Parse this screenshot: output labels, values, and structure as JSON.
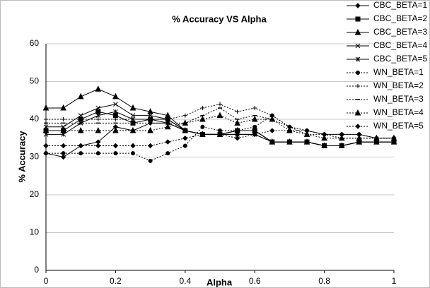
{
  "chart_data": {
    "type": "line",
    "title": "% Accuracy VS Alpha",
    "x_label": "Alpha",
    "y_label": "% Accuracy",
    "x": [
      0,
      0.05,
      0.1,
      0.15,
      0.2,
      0.25,
      0.3,
      0.35,
      0.4,
      0.45,
      0.5,
      0.55,
      0.6,
      0.65,
      0.7,
      0.75,
      0.8,
      0.85,
      0.9,
      0.95,
      1
    ],
    "xlim": [
      0,
      1
    ],
    "xticks": [
      0,
      0.2,
      0.4,
      0.6,
      0.8,
      1
    ],
    "ylim": [
      0,
      60
    ],
    "yticks": [
      0,
      10,
      20,
      30,
      40,
      50,
      60
    ],
    "grid": true,
    "legend": "top-right",
    "series": [
      {
        "name": "CBC_BETA=1",
        "color": "#000000",
        "marker": "diamond",
        "dash": "solid",
        "values": [
          31,
          30,
          33,
          34,
          38,
          37,
          39,
          39,
          37,
          36,
          36,
          36,
          36,
          34,
          34,
          34,
          33,
          33,
          34,
          34,
          34
        ]
      },
      {
        "name": "CBC_BETA=2",
        "color": "#000000",
        "marker": "square",
        "dash": "solid",
        "values": [
          37,
          37,
          40,
          42,
          41,
          39,
          40,
          40,
          37,
          36,
          36,
          37,
          37,
          34,
          34,
          34,
          33,
          33,
          34,
          34,
          34
        ]
      },
      {
        "name": "CBC_BETA=3",
        "color": "#000000",
        "marker": "triangle",
        "dash": "solid",
        "values": [
          43,
          43,
          46,
          48,
          46,
          43,
          42,
          41,
          37,
          36,
          36,
          37,
          37,
          34,
          34,
          34,
          33,
          33,
          34,
          34,
          34
        ]
      },
      {
        "name": "CBC_BETA=4",
        "color": "#000000",
        "marker": "cross",
        "dash": "solid",
        "values": [
          38,
          38,
          41,
          43,
          44,
          41,
          41,
          40,
          37,
          36,
          36,
          37,
          37,
          34,
          34,
          34,
          33,
          33,
          34,
          34,
          34
        ]
      },
      {
        "name": "CBC_BETA=5",
        "color": "#000000",
        "marker": "asterisk",
        "dash": "solid",
        "values": [
          36,
          36,
          39,
          41,
          42,
          40,
          40,
          39,
          37,
          36,
          36,
          36,
          36,
          34,
          34,
          34,
          33,
          33,
          34,
          34,
          34
        ]
      },
      {
        "name": "WN_BETA=1",
        "color": "#000000",
        "marker": "circle",
        "dash": "dotted",
        "values": [
          31,
          31,
          31,
          31,
          31,
          31,
          29,
          31,
          33,
          38,
          37,
          37,
          38,
          41,
          38,
          37,
          36,
          36,
          36,
          35,
          35
        ]
      },
      {
        "name": "WN_BETA=2",
        "color": "#000000",
        "marker": "plus",
        "dash": "dotted",
        "values": [
          40,
          40,
          40,
          40,
          40,
          40,
          40,
          40,
          41,
          43,
          44,
          42,
          43,
          41,
          38,
          37,
          36,
          36,
          36,
          35,
          35
        ]
      },
      {
        "name": "WN_BETA=3",
        "color": "#000000",
        "marker": "dash",
        "dash": "dotted",
        "values": [
          39,
          39,
          39,
          39,
          39,
          39,
          39,
          39,
          39,
          41,
          43,
          40,
          41,
          40,
          38,
          36,
          36,
          35,
          35,
          35,
          35
        ]
      },
      {
        "name": "WN_BETA=4",
        "color": "#000000",
        "marker": "triangle",
        "dash": "dotted",
        "values": [
          37,
          37,
          37,
          37,
          37,
          37,
          37,
          38,
          39,
          40,
          41,
          39,
          40,
          40,
          37,
          36,
          35,
          35,
          35,
          35,
          35
        ]
      },
      {
        "name": "WN_BETA=5",
        "color": "#000000",
        "marker": "diamond",
        "dash": "dotted",
        "values": [
          33,
          33,
          33,
          33,
          33,
          33,
          33,
          34,
          35,
          36,
          36,
          35,
          36,
          37,
          37,
          37,
          36,
          36,
          36,
          35,
          35
        ]
      }
    ]
  }
}
